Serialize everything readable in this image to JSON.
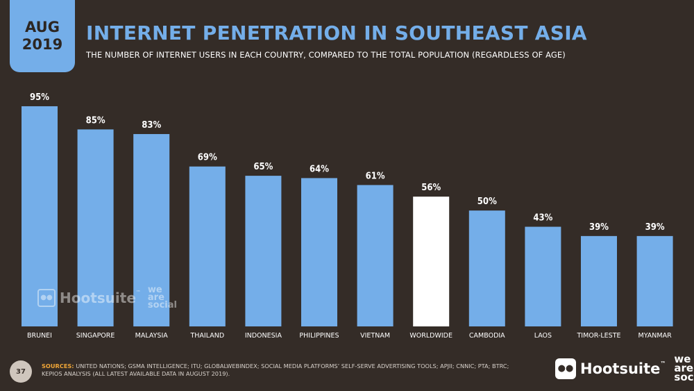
{
  "header": {
    "month": "AUG",
    "year": "2019",
    "title": "INTERNET PENETRATION IN SOUTHEAST ASIA",
    "subtitle": "THE NUMBER OF INTERNET USERS IN EACH COUNTRY, COMPARED TO THE TOTAL POPULATION (REGARDLESS OF AGE)"
  },
  "footer": {
    "page_number": "37",
    "sources_label": "SOURCES:",
    "sources_text": "UNITED NATIONS; GSMA INTELLIGENCE; ITU; GLOBALWEBINDEX; SOCIAL MEDIA PLATFORMS’ SELF-SERVE ADVERTISING TOOLS; APJII; CNNIC; PTA; BTRC; KEPIOS ANALYSIS (ALL LATEST AVAILABLE DATA IN AUGUST 2019).",
    "brand_name": "Hootsuite",
    "brand_tm": "™",
    "partner_lines": [
      "we",
      "are",
      "social"
    ]
  },
  "colors": {
    "background": "#342c27",
    "bar": "#74aee9",
    "highlight_bar": "#ffffff",
    "label": "#ffffff"
  },
  "chart_data": {
    "type": "bar",
    "categories": [
      "BRUNEI",
      "SINGAPORE",
      "MALAYSIA",
      "THAILAND",
      "INDONESIA",
      "PHILIPPINES",
      "VIETNAM",
      "WORLDWIDE",
      "CAMBODIA",
      "LAOS",
      "TIMOR-LESTE",
      "MYANMAR"
    ],
    "values": [
      95,
      85,
      83,
      69,
      65,
      64,
      61,
      56,
      50,
      43,
      39,
      39
    ],
    "data_labels": [
      "95%",
      "85%",
      "83%",
      "69%",
      "65%",
      "64%",
      "61%",
      "56%",
      "50%",
      "43%",
      "39%",
      "39%"
    ],
    "highlight": "WORLDWIDE",
    "ylim": [
      0,
      100
    ],
    "grid": false,
    "title": "INTERNET PENETRATION IN SOUTHEAST ASIA",
    "xlabel": "",
    "ylabel": ""
  }
}
